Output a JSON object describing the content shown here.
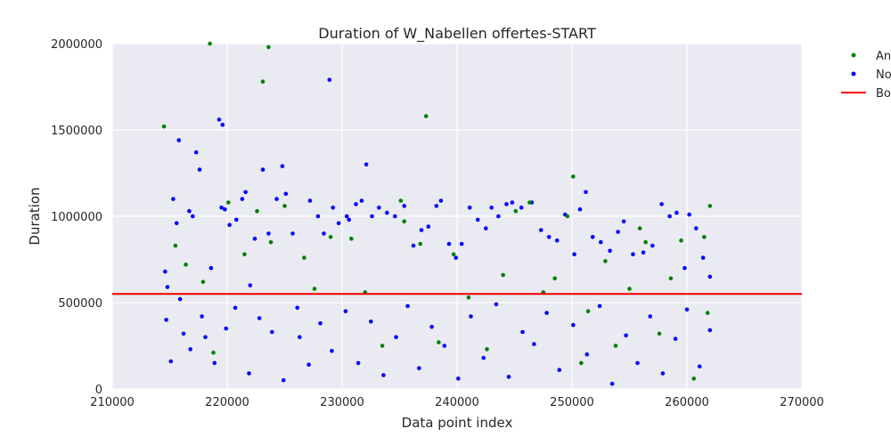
{
  "chart_data": {
    "type": "scatter",
    "title": "Duration of W_Nabellen offertes-START",
    "xlabel": "Data point index",
    "ylabel": "Duration",
    "xlim": [
      210000,
      270000
    ],
    "ylim": [
      0,
      2000000
    ],
    "xticks": [
      210000,
      220000,
      230000,
      240000,
      250000,
      260000,
      270000
    ],
    "yticks": [
      0,
      500000,
      1000000,
      1500000,
      2000000
    ],
    "grid": true,
    "legend_position": "outside top-right (clipped)",
    "legend": [
      "An",
      "No",
      "Bo"
    ],
    "colors": {
      "anomaly": "#008000",
      "normal": "#0000ff",
      "boundary": "#ff0000",
      "plot_bg": "#eaeaf2",
      "grid": "#ffffff"
    },
    "boundary": {
      "name": "Bo",
      "type": "hline",
      "y": 550000
    },
    "series": [
      {
        "name": "No",
        "color": "#0000ff",
        "points": [
          [
            214600,
            680000
          ],
          [
            214800,
            590000
          ],
          [
            215100,
            160000
          ],
          [
            215300,
            1100000
          ],
          [
            215600,
            960000
          ],
          [
            215800,
            1440000
          ],
          [
            216200,
            320000
          ],
          [
            216700,
            1030000
          ],
          [
            217000,
            1000000
          ],
          [
            217300,
            1370000
          ],
          [
            217600,
            1270000
          ],
          [
            218100,
            300000
          ],
          [
            218600,
            700000
          ],
          [
            219300,
            1560000
          ],
          [
            219600,
            1530000
          ],
          [
            219500,
            1050000
          ],
          [
            219800,
            1040000
          ],
          [
            220200,
            950000
          ],
          [
            220800,
            980000
          ],
          [
            221300,
            1100000
          ],
          [
            221600,
            1140000
          ],
          [
            222000,
            600000
          ],
          [
            222400,
            870000
          ],
          [
            223100,
            1270000
          ],
          [
            223600,
            900000
          ],
          [
            224300,
            1100000
          ],
          [
            224800,
            1290000
          ],
          [
            225100,
            1130000
          ],
          [
            225700,
            900000
          ],
          [
            226300,
            300000
          ],
          [
            227200,
            1090000
          ],
          [
            227900,
            1000000
          ],
          [
            228400,
            900000
          ],
          [
            228900,
            1790000
          ],
          [
            229200,
            1050000
          ],
          [
            229700,
            960000
          ],
          [
            230400,
            1000000
          ],
          [
            230600,
            980000
          ],
          [
            231200,
            1070000
          ],
          [
            231700,
            1090000
          ],
          [
            232100,
            1300000
          ],
          [
            232600,
            1000000
          ],
          [
            233200,
            1050000
          ],
          [
            233900,
            1020000
          ],
          [
            234600,
            1000000
          ],
          [
            235400,
            1060000
          ],
          [
            236200,
            830000
          ],
          [
            236900,
            920000
          ],
          [
            237500,
            940000
          ],
          [
            238200,
            1060000
          ],
          [
            238600,
            1090000
          ],
          [
            239300,
            840000
          ],
          [
            239900,
            760000
          ],
          [
            240400,
            840000
          ],
          [
            241100,
            1050000
          ],
          [
            241800,
            980000
          ],
          [
            242500,
            930000
          ],
          [
            243000,
            1050000
          ],
          [
            243600,
            1000000
          ],
          [
            244300,
            1070000
          ],
          [
            244800,
            1080000
          ],
          [
            245600,
            1050000
          ],
          [
            246500,
            1080000
          ],
          [
            247300,
            920000
          ],
          [
            248000,
            880000
          ],
          [
            248700,
            860000
          ],
          [
            249400,
            1010000
          ],
          [
            250200,
            780000
          ],
          [
            250700,
            1040000
          ],
          [
            251200,
            1140000
          ],
          [
            251800,
            880000
          ],
          [
            252500,
            850000
          ],
          [
            253300,
            800000
          ],
          [
            254000,
            910000
          ],
          [
            254500,
            970000
          ],
          [
            255300,
            780000
          ],
          [
            256200,
            790000
          ],
          [
            257000,
            830000
          ],
          [
            257800,
            1070000
          ],
          [
            258500,
            1000000
          ],
          [
            259100,
            1020000
          ],
          [
            259800,
            700000
          ],
          [
            260200,
            1010000
          ],
          [
            260800,
            930000
          ],
          [
            261400,
            760000
          ],
          [
            262000,
            650000
          ],
          [
            214700,
            400000
          ],
          [
            215900,
            520000
          ],
          [
            216800,
            230000
          ],
          [
            217800,
            420000
          ],
          [
            218900,
            150000
          ],
          [
            219900,
            350000
          ],
          [
            220700,
            470000
          ],
          [
            221900,
            90000
          ],
          [
            222800,
            410000
          ],
          [
            223900,
            330000
          ],
          [
            224900,
            50000
          ],
          [
            226100,
            470000
          ],
          [
            227100,
            140000
          ],
          [
            228100,
            380000
          ],
          [
            229100,
            220000
          ],
          [
            230300,
            450000
          ],
          [
            231400,
            150000
          ],
          [
            232500,
            390000
          ],
          [
            233600,
            80000
          ],
          [
            234700,
            300000
          ],
          [
            235700,
            480000
          ],
          [
            236700,
            120000
          ],
          [
            237800,
            360000
          ],
          [
            238900,
            250000
          ],
          [
            240100,
            60000
          ],
          [
            241200,
            420000
          ],
          [
            242300,
            180000
          ],
          [
            243400,
            490000
          ],
          [
            244500,
            70000
          ],
          [
            245700,
            330000
          ],
          [
            246700,
            260000
          ],
          [
            247800,
            440000
          ],
          [
            248900,
            110000
          ],
          [
            250100,
            370000
          ],
          [
            251300,
            200000
          ],
          [
            252400,
            480000
          ],
          [
            253500,
            30000
          ],
          [
            254700,
            310000
          ],
          [
            255700,
            150000
          ],
          [
            256800,
            420000
          ],
          [
            257900,
            90000
          ],
          [
            259000,
            290000
          ],
          [
            260000,
            460000
          ],
          [
            261100,
            130000
          ],
          [
            262000,
            340000
          ]
        ]
      },
      {
        "name": "An",
        "color": "#008000",
        "points": [
          [
            214500,
            1520000
          ],
          [
            218500,
            2000000
          ],
          [
            223600,
            1980000
          ],
          [
            223100,
            1780000
          ],
          [
            237300,
            1580000
          ],
          [
            250100,
            1230000
          ],
          [
            215500,
            830000
          ],
          [
            216400,
            720000
          ],
          [
            217900,
            620000
          ],
          [
            218800,
            210000
          ],
          [
            220100,
            1080000
          ],
          [
            221500,
            780000
          ],
          [
            222600,
            1030000
          ],
          [
            223800,
            850000
          ],
          [
            225000,
            1060000
          ],
          [
            226700,
            760000
          ],
          [
            227600,
            580000
          ],
          [
            229000,
            880000
          ],
          [
            230800,
            870000
          ],
          [
            232000,
            560000
          ],
          [
            233500,
            250000
          ],
          [
            235100,
            1090000
          ],
          [
            235400,
            970000
          ],
          [
            236800,
            840000
          ],
          [
            238400,
            270000
          ],
          [
            239700,
            780000
          ],
          [
            241000,
            530000
          ],
          [
            242600,
            230000
          ],
          [
            244000,
            660000
          ],
          [
            245100,
            1030000
          ],
          [
            246300,
            1080000
          ],
          [
            247500,
            560000
          ],
          [
            248500,
            640000
          ],
          [
            249600,
            1000000
          ],
          [
            250800,
            150000
          ],
          [
            251400,
            450000
          ],
          [
            252900,
            740000
          ],
          [
            253800,
            250000
          ],
          [
            255000,
            580000
          ],
          [
            255900,
            930000
          ],
          [
            256400,
            850000
          ],
          [
            257600,
            320000
          ],
          [
            258600,
            640000
          ],
          [
            259500,
            860000
          ],
          [
            260600,
            60000
          ],
          [
            261500,
            880000
          ],
          [
            261800,
            440000
          ],
          [
            262000,
            1060000
          ]
        ]
      }
    ]
  },
  "legend_entries": [
    {
      "label": "An",
      "marker": "dot",
      "color": "#008000"
    },
    {
      "label": "No",
      "marker": "dot",
      "color": "#0000ff"
    },
    {
      "label": "Bo",
      "marker": "line",
      "color": "#ff0000"
    }
  ]
}
